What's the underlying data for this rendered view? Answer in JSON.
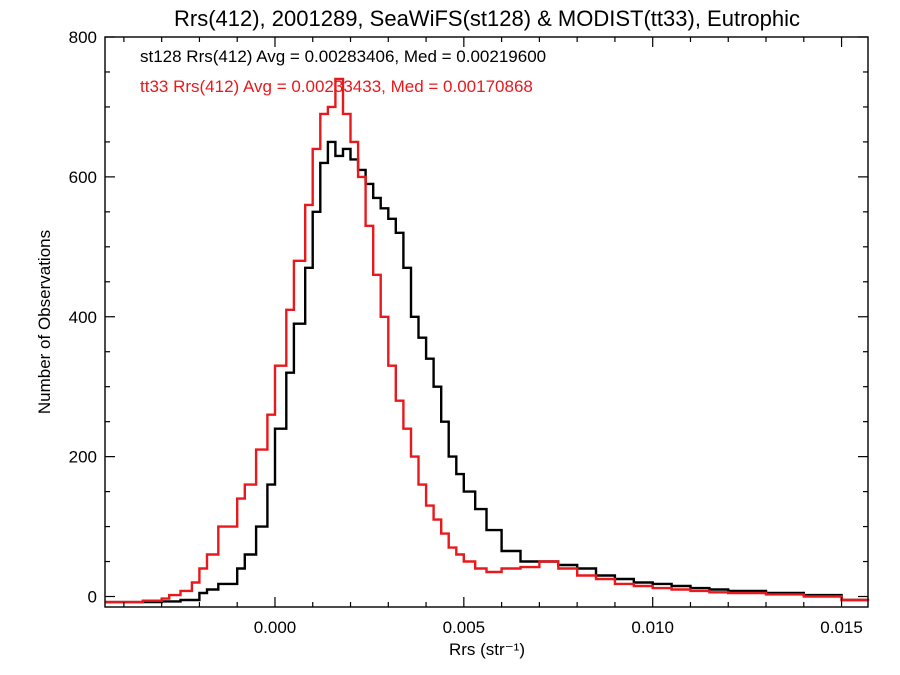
{
  "chart_data": {
    "type": "line",
    "title": "Rrs(412), 2001289, SeaWiFS(st128) & MODIST(tt33), Eutrophic",
    "xlabel": "Rrs (str⁻¹)",
    "ylabel": "Number of Observations",
    "xlim": [
      -0.0045,
      0.0157
    ],
    "ylim": [
      -15,
      800
    ],
    "x_ticks": [
      0.0,
      0.005,
      0.01,
      0.015
    ],
    "x_tick_labels": [
      "0.000",
      "0.005",
      "0.010",
      "0.015"
    ],
    "y_ticks": [
      0,
      200,
      400,
      600,
      800
    ],
    "y_tick_labels": [
      "0",
      "200",
      "400",
      "600",
      "800"
    ],
    "grid": false,
    "legend_position": "top-left",
    "series": [
      {
        "label": "st128 Rrs(412) Avg = 0.00283406, Med = 0.00219600",
        "color": "#000000",
        "style": "step",
        "x": [
          -0.0045,
          -0.0035,
          -0.003,
          -0.0025,
          -0.002,
          -0.0018,
          -0.0015,
          -0.001,
          -0.0008,
          -0.0005,
          -0.0002,
          0.0,
          0.0003,
          0.0005,
          0.0008,
          0.001,
          0.0012,
          0.0014,
          0.0016,
          0.0018,
          0.002,
          0.0022,
          0.0024,
          0.0026,
          0.0028,
          0.003,
          0.0032,
          0.0034,
          0.0036,
          0.0038,
          0.004,
          0.0042,
          0.0044,
          0.0046,
          0.0048,
          0.005,
          0.0053,
          0.0056,
          0.006,
          0.0065,
          0.007,
          0.0075,
          0.008,
          0.0085,
          0.009,
          0.0095,
          0.01,
          0.0105,
          0.011,
          0.0115,
          0.012,
          0.013,
          0.014,
          0.015,
          0.0157
        ],
        "y": [
          -8,
          -8,
          -7,
          -5,
          5,
          10,
          18,
          40,
          60,
          100,
          160,
          240,
          320,
          390,
          470,
          550,
          620,
          650,
          630,
          640,
          625,
          610,
          590,
          570,
          555,
          540,
          520,
          470,
          400,
          370,
          340,
          300,
          250,
          200,
          175,
          150,
          125,
          95,
          65,
          50,
          50,
          45,
          40,
          30,
          25,
          20,
          18,
          15,
          12,
          10,
          8,
          5,
          2,
          -5,
          -5
        ]
      },
      {
        "label": "tt33 Rrs(412) Avg = 0.00233433, Med = 0.00170868",
        "color": "#e8191c",
        "style": "step",
        "x": [
          -0.0045,
          -0.0035,
          -0.003,
          -0.0028,
          -0.0025,
          -0.0022,
          -0.002,
          -0.0018,
          -0.0015,
          -0.001,
          -0.0008,
          -0.0005,
          -0.0002,
          0.0,
          0.0003,
          0.0005,
          0.0008,
          0.001,
          0.0012,
          0.0014,
          0.0016,
          0.0018,
          0.002,
          0.0022,
          0.0024,
          0.0026,
          0.0028,
          0.003,
          0.0032,
          0.0034,
          0.0036,
          0.0038,
          0.004,
          0.0042,
          0.0044,
          0.0046,
          0.0048,
          0.005,
          0.0053,
          0.0056,
          0.006,
          0.0065,
          0.007,
          0.0075,
          0.008,
          0.0085,
          0.009,
          0.0095,
          0.01,
          0.0105,
          0.011,
          0.0115,
          0.012,
          0.013,
          0.014,
          0.015,
          0.0157
        ],
        "y": [
          -8,
          -6,
          -3,
          2,
          8,
          20,
          40,
          60,
          100,
          140,
          160,
          210,
          260,
          330,
          410,
          480,
          560,
          640,
          690,
          700,
          740,
          690,
          650,
          600,
          530,
          460,
          400,
          330,
          280,
          240,
          200,
          160,
          130,
          110,
          90,
          70,
          60,
          50,
          40,
          35,
          40,
          42,
          50,
          40,
          30,
          25,
          18,
          15,
          12,
          10,
          8,
          6,
          5,
          3,
          0,
          -5,
          -6
        ]
      }
    ]
  }
}
